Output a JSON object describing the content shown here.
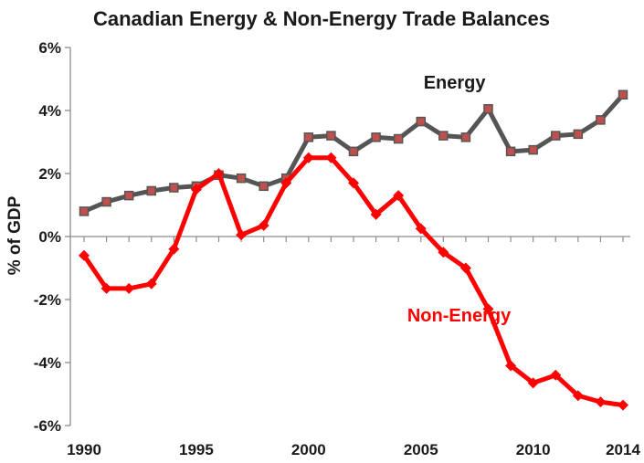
{
  "chart_data": {
    "type": "line",
    "title": "Canadian Energy & Non-Energy Trade Balances",
    "xlabel": "",
    "ylabel": "% of GDP",
    "xlim": [
      1990,
      2014
    ],
    "ylim": [
      -6,
      6
    ],
    "x": [
      1990,
      1991,
      1992,
      1993,
      1994,
      1995,
      1996,
      1997,
      1998,
      1999,
      2000,
      2001,
      2002,
      2003,
      2004,
      2005,
      2006,
      2007,
      2008,
      2009,
      2010,
      2011,
      2012,
      2013,
      2014
    ],
    "x_ticks": [
      {
        "value": 1990,
        "label": "1990"
      },
      {
        "value": 1995,
        "label": "1995"
      },
      {
        "value": 2000,
        "label": "2000"
      },
      {
        "value": 2005,
        "label": "2005"
      },
      {
        "value": 2010,
        "label": "2010"
      },
      {
        "value": 2014,
        "label": "2014"
      }
    ],
    "y_ticks": [
      {
        "value": 6,
        "label": "6%"
      },
      {
        "value": 4,
        "label": "4%"
      },
      {
        "value": 2,
        "label": "2%"
      },
      {
        "value": 0,
        "label": "0%"
      },
      {
        "value": -2,
        "label": "-2%"
      },
      {
        "value": -4,
        "label": "-4%"
      },
      {
        "value": -6,
        "label": "-6%"
      }
    ],
    "grid": false,
    "series": [
      {
        "name": "Energy",
        "color": "#555555",
        "marker_color": "#c0504d",
        "marker": "square",
        "label_near": {
          "x": 2006.5,
          "y": 4.7
        },
        "values": [
          0.8,
          1.1,
          1.3,
          1.45,
          1.55,
          1.6,
          1.95,
          1.85,
          1.6,
          1.85,
          3.15,
          3.2,
          2.7,
          3.15,
          3.1,
          3.65,
          3.2,
          3.15,
          4.05,
          2.7,
          2.75,
          3.2,
          3.25,
          3.7,
          4.5
        ]
      },
      {
        "name": "Non-Energy",
        "color": "#ff0000",
        "marker_color": "#ff0000",
        "marker": "diamond",
        "label_near": {
          "x": 2006.7,
          "y": -2.7
        },
        "values": [
          -0.6,
          -1.65,
          -1.65,
          -1.5,
          -0.4,
          1.5,
          2.0,
          0.05,
          0.35,
          1.7,
          2.5,
          2.5,
          1.7,
          0.7,
          1.3,
          0.25,
          -0.5,
          -1.0,
          -2.3,
          -4.1,
          -4.65,
          -4.4,
          -5.05,
          -5.25,
          -5.35
        ]
      }
    ]
  }
}
